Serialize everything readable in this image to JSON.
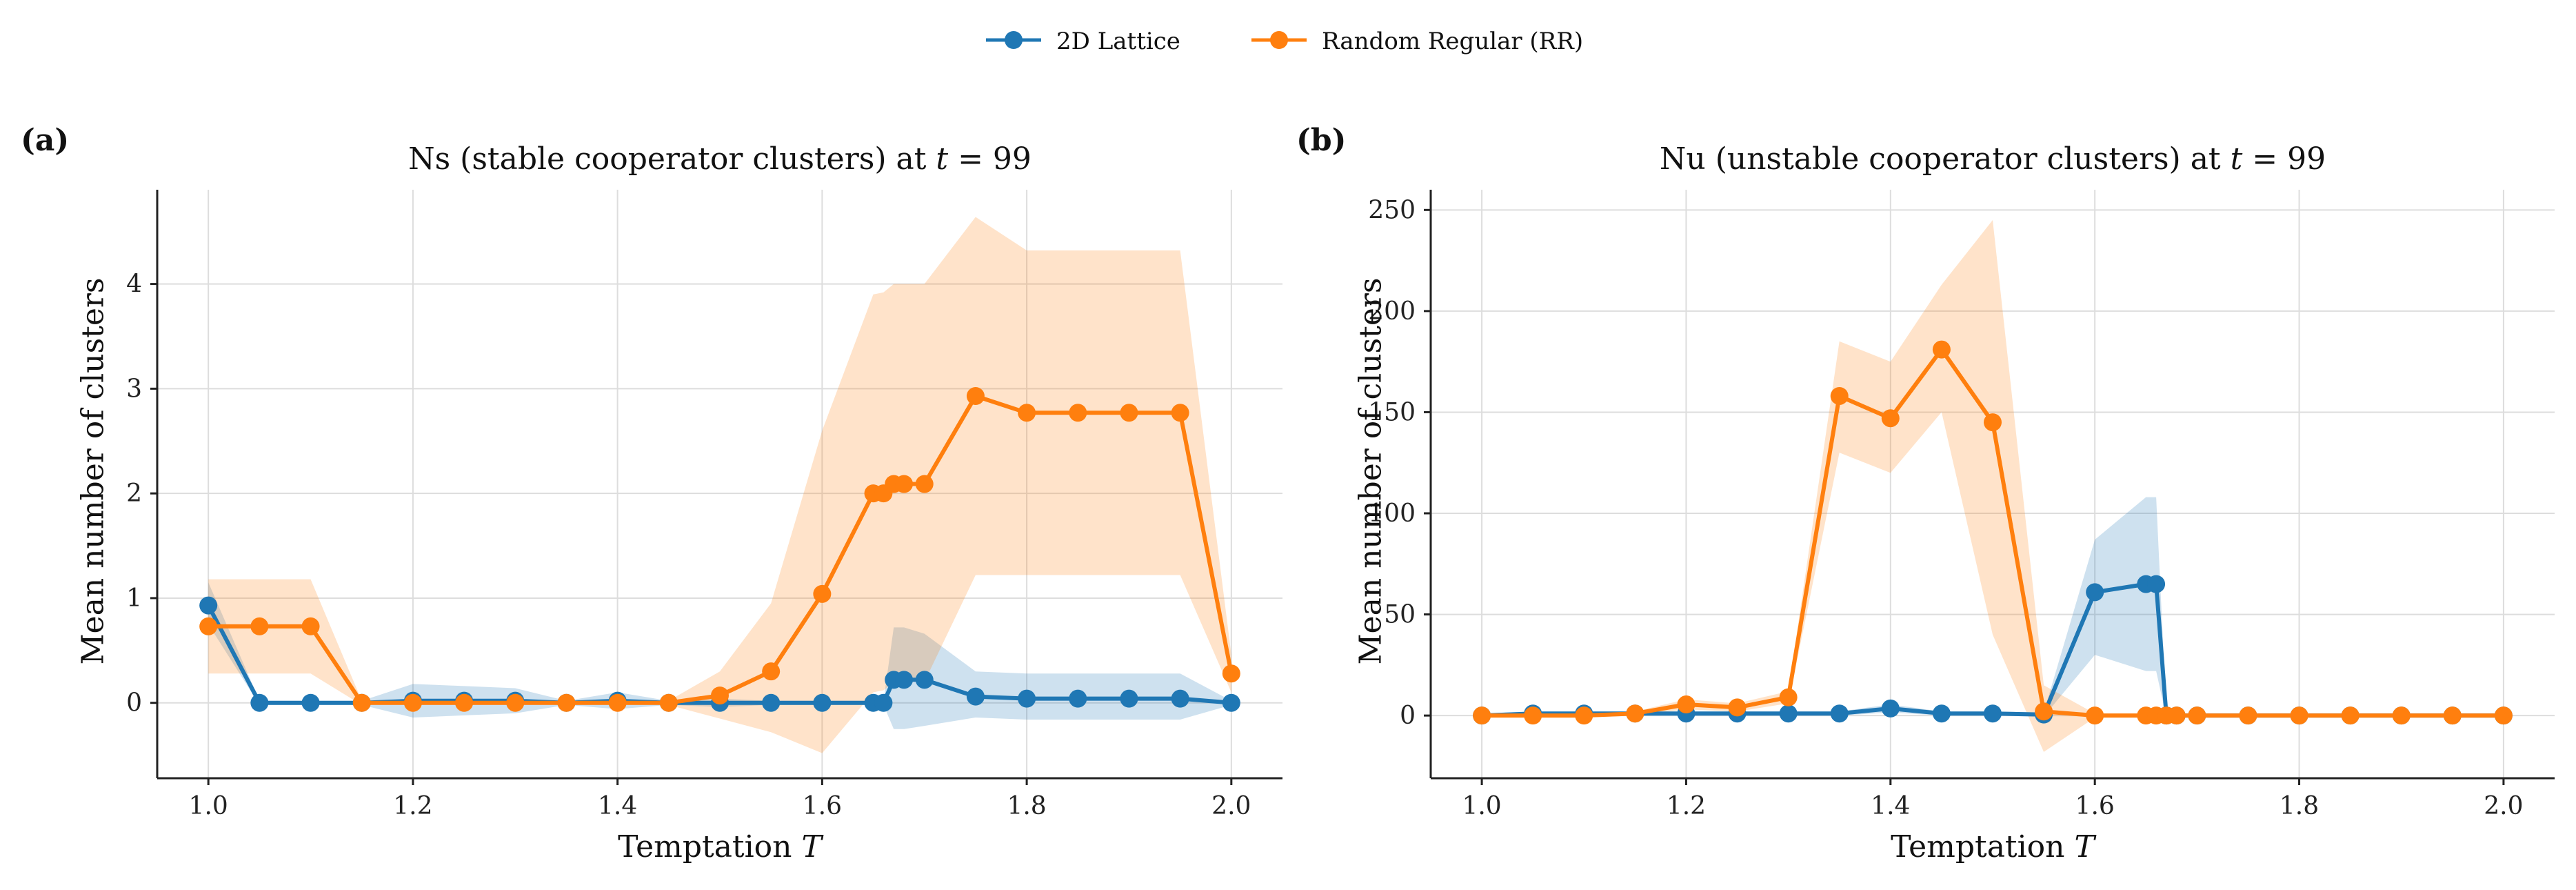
{
  "legend": {
    "items": [
      {
        "label": "2D Lattice",
        "color": "#1f77b4"
      },
      {
        "label": "Random Regular (RR)",
        "color": "#ff7f0e"
      }
    ]
  },
  "panels": [
    {
      "letter": "(a)",
      "title_prefix": "Ns (stable cooperator clusters) at ",
      "title_var": "t",
      "title_suffix": " = 99"
    },
    {
      "letter": "(b)",
      "title_prefix": "Nu (unstable cooperator clusters) at ",
      "title_var": "t",
      "title_suffix": " = 99"
    }
  ],
  "xlabel_text": "Temptation ",
  "xlabel_var": "T",
  "ylabel": "Mean number of clusters",
  "chart_data": [
    {
      "type": "line",
      "title": "Ns (stable cooperator clusters) at t = 99",
      "xlabel": "Temptation T",
      "ylabel": "Mean number of clusters",
      "xlim": [
        0.95,
        2.05
      ],
      "ylim": [
        -0.72,
        4.9
      ],
      "xticks": [
        "1.0",
        "1.2",
        "1.4",
        "1.6",
        "1.8",
        "2.0"
      ],
      "yticks": [
        "0",
        "1",
        "2",
        "3",
        "4"
      ],
      "grid": true,
      "series": [
        {
          "name": "2D Lattice",
          "color": "#1f77b4",
          "x": [
            1.0,
            1.05,
            1.1,
            1.15,
            1.2,
            1.25,
            1.3,
            1.35,
            1.4,
            1.45,
            1.5,
            1.55,
            1.6,
            1.65,
            1.66,
            1.67,
            1.68,
            1.7,
            1.75,
            1.8,
            1.85,
            1.9,
            1.95,
            2.0
          ],
          "y": [
            0.93,
            0.0,
            0.0,
            0.0,
            0.02,
            0.02,
            0.02,
            0.0,
            0.02,
            0.0,
            0.0,
            0.0,
            0.0,
            0.0,
            0.0,
            0.22,
            0.22,
            0.22,
            0.06,
            0.04,
            0.04,
            0.04,
            0.04,
            0.0
          ],
          "lower": [
            0.75,
            -0.02,
            -0.02,
            -0.02,
            -0.14,
            -0.12,
            -0.1,
            -0.02,
            -0.06,
            -0.02,
            -0.04,
            -0.02,
            -0.02,
            -0.02,
            -0.02,
            -0.25,
            -0.25,
            -0.22,
            -0.14,
            -0.16,
            -0.16,
            -0.16,
            -0.16,
            -0.02
          ],
          "upper": [
            1.15,
            0.02,
            0.02,
            0.02,
            0.18,
            0.16,
            0.14,
            0.02,
            0.1,
            0.02,
            0.04,
            0.02,
            0.02,
            0.02,
            0.02,
            0.72,
            0.72,
            0.66,
            0.3,
            0.28,
            0.28,
            0.28,
            0.28,
            0.02
          ]
        },
        {
          "name": "Random Regular (RR)",
          "color": "#ff7f0e",
          "x": [
            1.0,
            1.05,
            1.1,
            1.15,
            1.2,
            1.25,
            1.3,
            1.35,
            1.4,
            1.45,
            1.5,
            1.55,
            1.6,
            1.65,
            1.66,
            1.67,
            1.68,
            1.7,
            1.75,
            1.8,
            1.85,
            1.9,
            1.95,
            2.0
          ],
          "y": [
            0.73,
            0.73,
            0.73,
            0.0,
            0.0,
            0.0,
            0.0,
            0.0,
            0.0,
            0.0,
            0.07,
            0.3,
            1.04,
            2.0,
            2.0,
            2.09,
            2.09,
            2.09,
            2.93,
            2.77,
            2.77,
            2.77,
            2.77,
            0.28
          ],
          "lower": [
            0.28,
            0.28,
            0.28,
            -0.02,
            -0.02,
            -0.02,
            -0.02,
            -0.02,
            -0.02,
            -0.02,
            -0.15,
            -0.28,
            -0.48,
            0.1,
            0.12,
            0.2,
            0.2,
            0.2,
            1.22,
            1.22,
            1.22,
            1.22,
            1.22,
            0.1
          ],
          "upper": [
            1.18,
            1.18,
            1.18,
            0.02,
            0.02,
            0.02,
            0.02,
            0.02,
            0.02,
            0.02,
            0.3,
            0.95,
            2.6,
            3.9,
            3.92,
            4.0,
            4.0,
            4.0,
            4.64,
            4.32,
            4.32,
            4.32,
            4.32,
            0.46
          ]
        }
      ]
    },
    {
      "type": "line",
      "title": "Nu (unstable cooperator clusters) at t = 99",
      "xlabel": "Temptation T",
      "ylabel": "Mean number of clusters",
      "xlim": [
        0.95,
        2.05
      ],
      "ylim": [
        -31,
        260
      ],
      "xticks": [
        "1.0",
        "1.2",
        "1.4",
        "1.6",
        "1.8",
        "2.0"
      ],
      "yticks": [
        "0",
        "50",
        "100",
        "150",
        "200",
        "250"
      ],
      "grid": true,
      "series": [
        {
          "name": "2D Lattice",
          "color": "#1f77b4",
          "x": [
            1.0,
            1.05,
            1.1,
            1.15,
            1.2,
            1.25,
            1.3,
            1.35,
            1.4,
            1.45,
            1.5,
            1.55,
            1.6,
            1.65,
            1.66,
            1.67,
            1.68,
            1.7,
            1.75,
            1.8,
            1.85,
            1.9,
            1.95,
            2.0
          ],
          "y": [
            0,
            1,
            1,
            1,
            1,
            1,
            1,
            1,
            3.5,
            1,
            1,
            0.5,
            61,
            65,
            65,
            0,
            0,
            0,
            0,
            0,
            0,
            0,
            0,
            0
          ],
          "lower": [
            -1,
            0,
            0,
            0,
            0,
            0,
            0,
            0,
            1.5,
            0,
            0,
            -0.5,
            30,
            22,
            22,
            -1,
            -1,
            -1,
            -1,
            -1,
            -1,
            -1,
            -1,
            -1
          ],
          "upper": [
            1,
            2,
            2,
            2,
            2,
            2,
            2,
            2,
            5.5,
            2,
            2,
            1.5,
            87,
            108,
            108,
            1,
            1,
            1,
            1,
            1,
            1,
            1,
            1,
            1
          ]
        },
        {
          "name": "Random Regular (RR)",
          "color": "#ff7f0e",
          "x": [
            1.0,
            1.05,
            1.1,
            1.15,
            1.2,
            1.25,
            1.3,
            1.35,
            1.4,
            1.45,
            1.5,
            1.55,
            1.6,
            1.65,
            1.66,
            1.67,
            1.68,
            1.7,
            1.75,
            1.8,
            1.85,
            1.9,
            1.95,
            2.0
          ],
          "y": [
            0,
            0,
            0,
            1,
            5.5,
            4,
            9,
            158,
            147,
            181,
            145,
            2,
            0,
            0,
            0,
            0,
            0,
            0,
            0,
            0,
            0,
            0,
            0,
            0
          ],
          "lower": [
            -1,
            -1,
            -1,
            0,
            3,
            2,
            6,
            130,
            120,
            150,
            40,
            -18,
            -1,
            -1,
            -1,
            -1,
            -1,
            -1,
            -1,
            -1,
            -1,
            -1,
            -1,
            -1
          ],
          "upper": [
            1,
            1,
            1,
            2,
            8,
            6,
            12,
            185,
            175,
            213,
            245,
            15,
            1,
            1,
            1,
            1,
            1,
            1,
            1,
            1,
            1,
            1,
            1,
            1
          ]
        }
      ]
    }
  ]
}
